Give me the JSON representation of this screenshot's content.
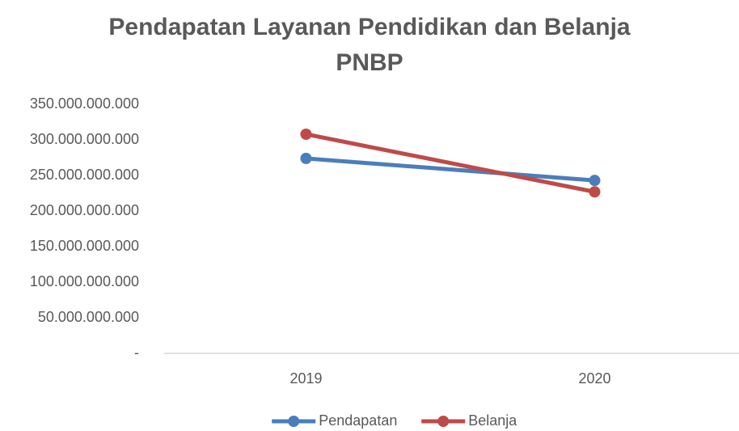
{
  "chart_data": {
    "type": "line",
    "title": "Pendapatan Layanan Pendidikan dan Belanja PNBP",
    "categories": [
      "2019",
      "2020"
    ],
    "series": [
      {
        "name": "Pendapatan",
        "color": "#4a7ebb",
        "values": [
          274000000000,
          243000000000
        ]
      },
      {
        "name": "Belanja",
        "color": "#be4b48",
        "values": [
          308000000000,
          227000000000
        ]
      }
    ],
    "ylim": [
      0,
      350000000000
    ],
    "yticks": [
      {
        "value": 0,
        "label": "-"
      },
      {
        "value": 50000000000,
        "label": "50.000.000.000"
      },
      {
        "value": 100000000000,
        "label": "100.000.000.000"
      },
      {
        "value": 150000000000,
        "label": "150.000.000.000"
      },
      {
        "value": 200000000000,
        "label": "200.000.000.000"
      },
      {
        "value": 250000000000,
        "label": "250.000.000.000"
      },
      {
        "value": 300000000000,
        "label": "300.000.000.000"
      },
      {
        "value": 350000000000,
        "label": "350.000.000.000"
      }
    ],
    "grid": false,
    "legend": "bottom"
  }
}
